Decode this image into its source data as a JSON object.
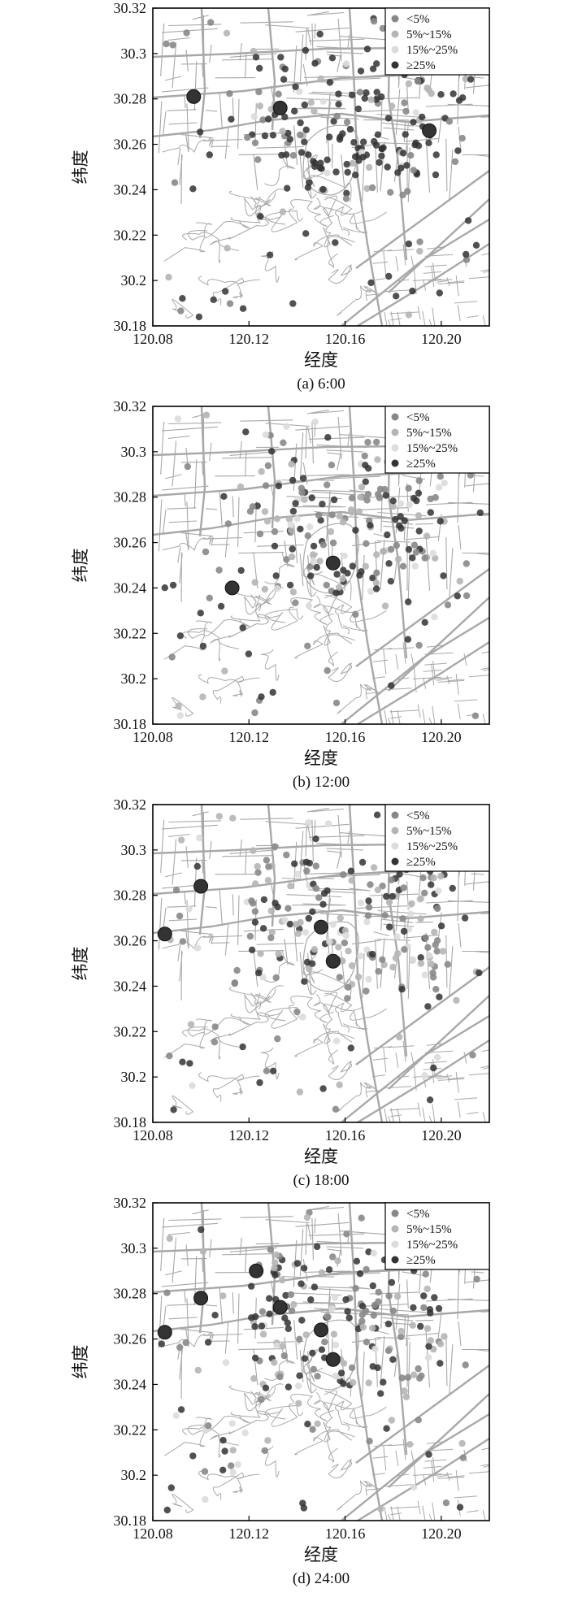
{
  "axes": {
    "xlabel": "经度",
    "ylabel": "纬度",
    "xlim": [
      120.08,
      120.22
    ],
    "ylim": [
      30.18,
      30.32
    ],
    "xticks": [
      "120.08",
      "120.12",
      "120.16",
      "120.20"
    ],
    "xtick_values": [
      120.08,
      120.12,
      120.16,
      120.2
    ],
    "yticks": [
      "30.32",
      "30.3",
      "30.28",
      "30.26",
      "30.24",
      "30.22",
      "30.2",
      "30.18"
    ],
    "ytick_values": [
      30.32,
      30.3,
      30.28,
      30.26,
      30.24,
      30.22,
      30.2,
      30.18
    ]
  },
  "legend": {
    "placement": "top-right",
    "entries": [
      {
        "label": "<5%",
        "color": "#888888"
      },
      {
        "label": "5%~15%",
        "color": "#b5b5b5"
      },
      {
        "label": "15%~25%",
        "color": "#dcdcdc"
      },
      {
        "label": "≥25%",
        "color": "#333333"
      }
    ]
  },
  "colors": {
    "road": "#a8a8a8",
    "frame": "#000000"
  },
  "chart_data": [
    {
      "type": "scatter",
      "caption": "(a) 6:00",
      "large_points": [
        [
          120.097,
          30.281,
          3
        ],
        [
          120.133,
          30.276,
          3
        ],
        [
          120.195,
          30.266,
          3
        ]
      ]
    },
    {
      "type": "scatter",
      "caption": "(b) 12:00",
      "large_points": [
        [
          120.113,
          30.24,
          3
        ],
        [
          120.155,
          30.251,
          3
        ]
      ]
    },
    {
      "type": "scatter",
      "caption": "(c) 18:00",
      "large_points": [
        [
          120.085,
          30.263,
          3
        ],
        [
          120.1,
          30.284,
          3
        ],
        [
          120.15,
          30.266,
          3
        ],
        [
          120.155,
          30.251,
          3
        ]
      ]
    },
    {
      "type": "scatter",
      "caption": "(d) 24:00",
      "large_points": [
        [
          120.085,
          30.263,
          3
        ],
        [
          120.1,
          30.278,
          3
        ],
        [
          120.123,
          30.29,
          3
        ],
        [
          120.133,
          30.274,
          3
        ],
        [
          120.15,
          30.264,
          3
        ],
        [
          120.155,
          30.251,
          3
        ]
      ]
    }
  ]
}
